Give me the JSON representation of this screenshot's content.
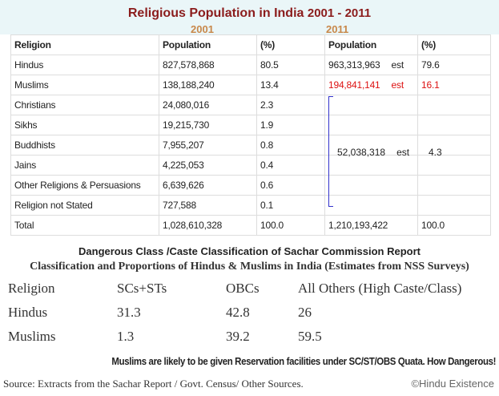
{
  "title": {
    "main": "Religious Population in India",
    "years": "2001  - 2011"
  },
  "year_labels": {
    "y2001": "2001",
    "y2011": "2011"
  },
  "table": {
    "headers": [
      "Religion",
      "Population",
      "(%)",
      "Population",
      "(%)"
    ],
    "rows": [
      {
        "religion": "Hindus",
        "pop2001": "827,578,868",
        "pct2001": "80.5",
        "pop2011": "963,313,963",
        "est": "est",
        "pct2011": "79.6"
      },
      {
        "religion": "Muslims",
        "pop2001": "138,188,240",
        "pct2001": "13.4",
        "pop2011": "194,841,141",
        "est": "est",
        "pct2011": "16.1"
      },
      {
        "religion": "Christians",
        "pop2001": "24,080,016",
        "pct2001": "2.3"
      },
      {
        "religion": "Sikhs",
        "pop2001": "19,215,730",
        "pct2001": "1.9"
      },
      {
        "religion": "Buddhists",
        "pop2001": "7,955,207",
        "pct2001": "0.8"
      },
      {
        "religion": "Jains",
        "pop2001": "4,225,053",
        "pct2001": "0.4"
      },
      {
        "religion": "Other Religions & Persuasions",
        "pop2001": "6,639,626",
        "pct2001": "0.6"
      },
      {
        "religion": "Religion not Stated",
        "pop2001": "727,588",
        "pct2001": "0.1"
      },
      {
        "religion": "Total",
        "pop2001": "1,028,610,328",
        "pct2001": "100.0",
        "pop2011": "1,210,193,422",
        "pct2011": "100.0"
      }
    ],
    "merged": {
      "pop2011": "52,038,318",
      "est": "est",
      "pct2011": "4.3"
    }
  },
  "classification": {
    "heading1": "Dangerous Class /Caste Classification of Sachar Commission Report",
    "heading2": "Classification and Proportions of Hindus & Muslims in India (Estimates from NSS Surveys)",
    "headers": [
      "Religion",
      "SCs+STs",
      "OBCs",
      "All Others (High Caste/Class)"
    ],
    "rows": [
      [
        "Hindus",
        "31.3",
        "42.8",
        "26"
      ],
      [
        "Muslims",
        "1.3",
        "39.2",
        "59.5"
      ]
    ]
  },
  "warning": "Muslims are likely to be given Reservation facilities under SC/ST/OBS Quata. How Dangerous!",
  "source": "Source: Extracts from the Sachar Report / Govt. Census/ Other Sources.",
  "copyright": "©Hindu Existence",
  "colors": {
    "title": "#8b1c1c",
    "year": "#c8884a",
    "muslim2011": "#dd1111",
    "bracket": "#3333cc"
  }
}
